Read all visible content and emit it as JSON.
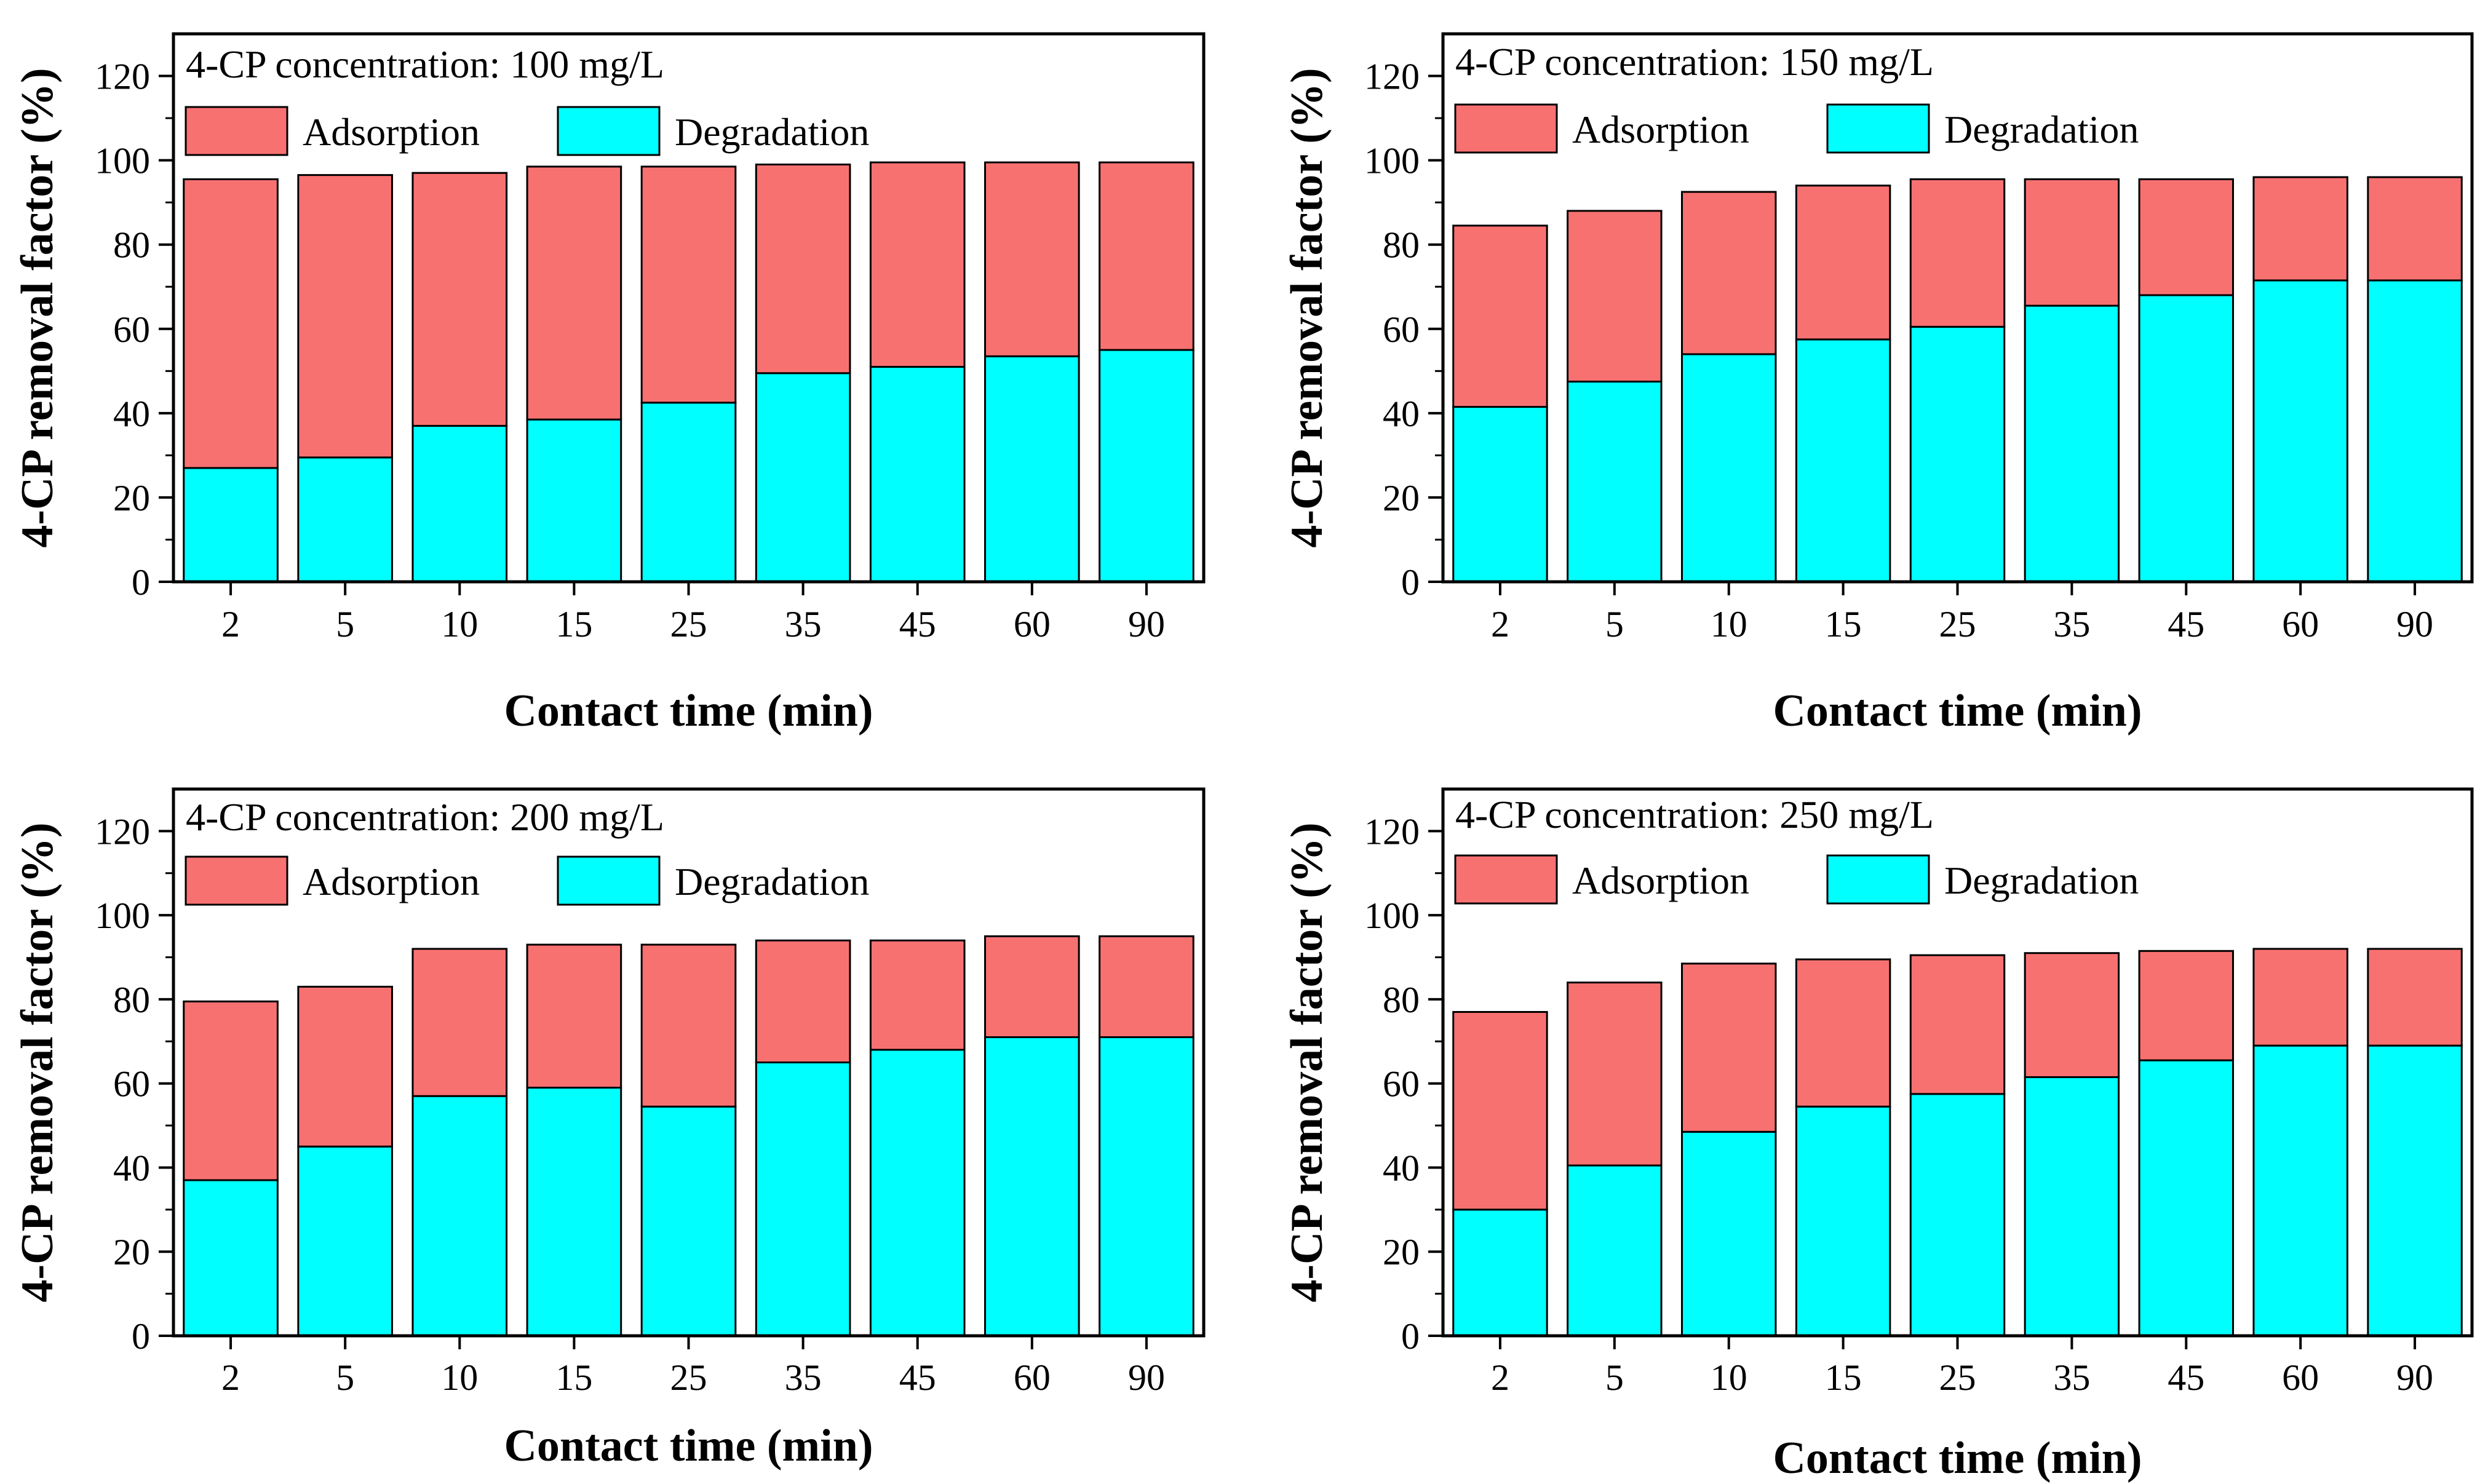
{
  "figure": {
    "series_names": [
      "Adsorption",
      "Degradation"
    ],
    "colors": {
      "adsorption": "#F87171",
      "degradation": "#00FFFF",
      "axis": "#000000"
    }
  },
  "chart_data": [
    {
      "type": "bar",
      "stacked": true,
      "label": "4-CP concentration: 100 mg/L",
      "xlabel": "Contact time (min)",
      "ylabel": "4-CP removal factor (%)",
      "ylim": [
        0,
        130
      ],
      "yticks": [
        0,
        20,
        40,
        60,
        80,
        100,
        120
      ],
      "categories": [
        "2",
        "5",
        "10",
        "15",
        "25",
        "35",
        "45",
        "60",
        "90"
      ],
      "series": [
        {
          "name": "Degradation",
          "values": [
            27,
            29.5,
            37,
            38.5,
            42.5,
            49.5,
            51,
            53.5,
            55
          ]
        },
        {
          "name": "Adsorption",
          "values": [
            68.5,
            67,
            60,
            60,
            56,
            49.5,
            48.5,
            46,
            44.5
          ]
        }
      ],
      "totals": [
        95.5,
        96.5,
        97,
        98.5,
        98.5,
        99,
        99.5,
        99.5,
        99.5
      ]
    },
    {
      "type": "bar",
      "stacked": true,
      "label": "4-CP concentration: 150 mg/L",
      "xlabel": "Contact time (min)",
      "ylabel": "4-CP removal factor (%)",
      "ylim": [
        0,
        130
      ],
      "yticks": [
        0,
        20,
        40,
        60,
        80,
        100,
        120
      ],
      "categories": [
        "2",
        "5",
        "10",
        "15",
        "25",
        "35",
        "45",
        "60",
        "90"
      ],
      "series": [
        {
          "name": "Degradation",
          "values": [
            41.5,
            47.5,
            54,
            57.5,
            60.5,
            65.5,
            68,
            71.5,
            71.5
          ]
        },
        {
          "name": "Adsorption",
          "values": [
            43,
            40.5,
            38.5,
            36.5,
            35,
            30,
            27.5,
            24.5,
            24.5
          ]
        }
      ],
      "totals": [
        84.5,
        88,
        92.5,
        94,
        95.5,
        95.5,
        95.5,
        96,
        96
      ]
    },
    {
      "type": "bar",
      "stacked": true,
      "label": "4-CP concentration: 200 mg/L",
      "xlabel": "Contact time (min)",
      "ylabel": "4-CP removal factor (%)",
      "ylim": [
        0,
        130
      ],
      "yticks": [
        0,
        20,
        40,
        60,
        80,
        100,
        120
      ],
      "categories": [
        "2",
        "5",
        "10",
        "15",
        "25",
        "35",
        "45",
        "60",
        "90"
      ],
      "series": [
        {
          "name": "Degradation",
          "values": [
            37,
            45,
            57,
            59,
            54.5,
            65,
            68,
            71,
            71
          ]
        },
        {
          "name": "Adsorption",
          "values": [
            42.5,
            38,
            35,
            34,
            38.5,
            29,
            26,
            24,
            24
          ]
        }
      ],
      "totals": [
        79.5,
        83,
        92,
        93,
        93,
        94,
        94,
        95,
        95
      ]
    },
    {
      "type": "bar",
      "stacked": true,
      "label": "4-CP concentration: 250 mg/L",
      "xlabel": "Contact time (min)",
      "ylabel": "4-CP removal factor (%)",
      "ylim": [
        0,
        130
      ],
      "yticks": [
        0,
        20,
        40,
        60,
        80,
        100,
        120
      ],
      "categories": [
        "2",
        "5",
        "10",
        "15",
        "25",
        "35",
        "45",
        "60",
        "90"
      ],
      "series": [
        {
          "name": "Degradation",
          "values": [
            30,
            40.5,
            48.5,
            54.5,
            57.5,
            61.5,
            65.5,
            69,
            69
          ]
        },
        {
          "name": "Adsorption",
          "values": [
            47,
            43.5,
            40,
            35,
            33,
            29.5,
            26,
            23,
            23
          ]
        }
      ],
      "totals": [
        77,
        84,
        88.5,
        89.5,
        90.5,
        91,
        91.5,
        92,
        92
      ]
    }
  ]
}
